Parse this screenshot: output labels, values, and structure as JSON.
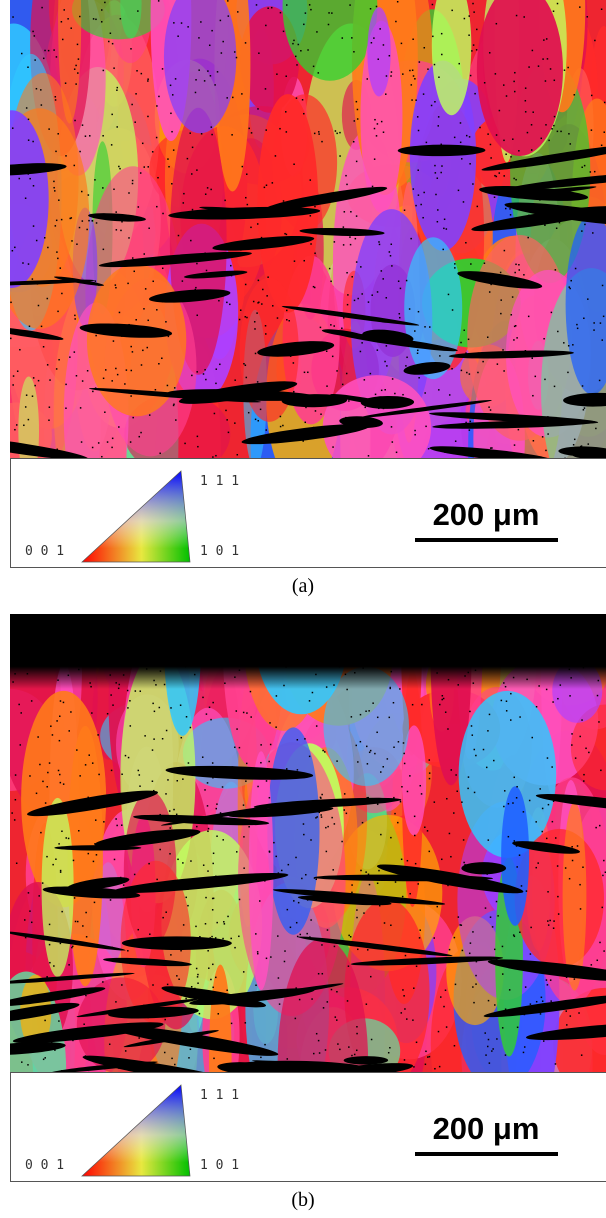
{
  "panels": [
    {
      "caption": "(a)",
      "ipf_labels": {
        "top": "1 1 1",
        "right": "1 0 1",
        "left": "0 0 1"
      },
      "scale_bar": "200 μm"
    },
    {
      "caption": "(b)",
      "ipf_labels": {
        "top": "1 1 1",
        "right": "1 0 1",
        "left": "0 0 1"
      },
      "scale_bar": "200 μm"
    }
  ]
}
